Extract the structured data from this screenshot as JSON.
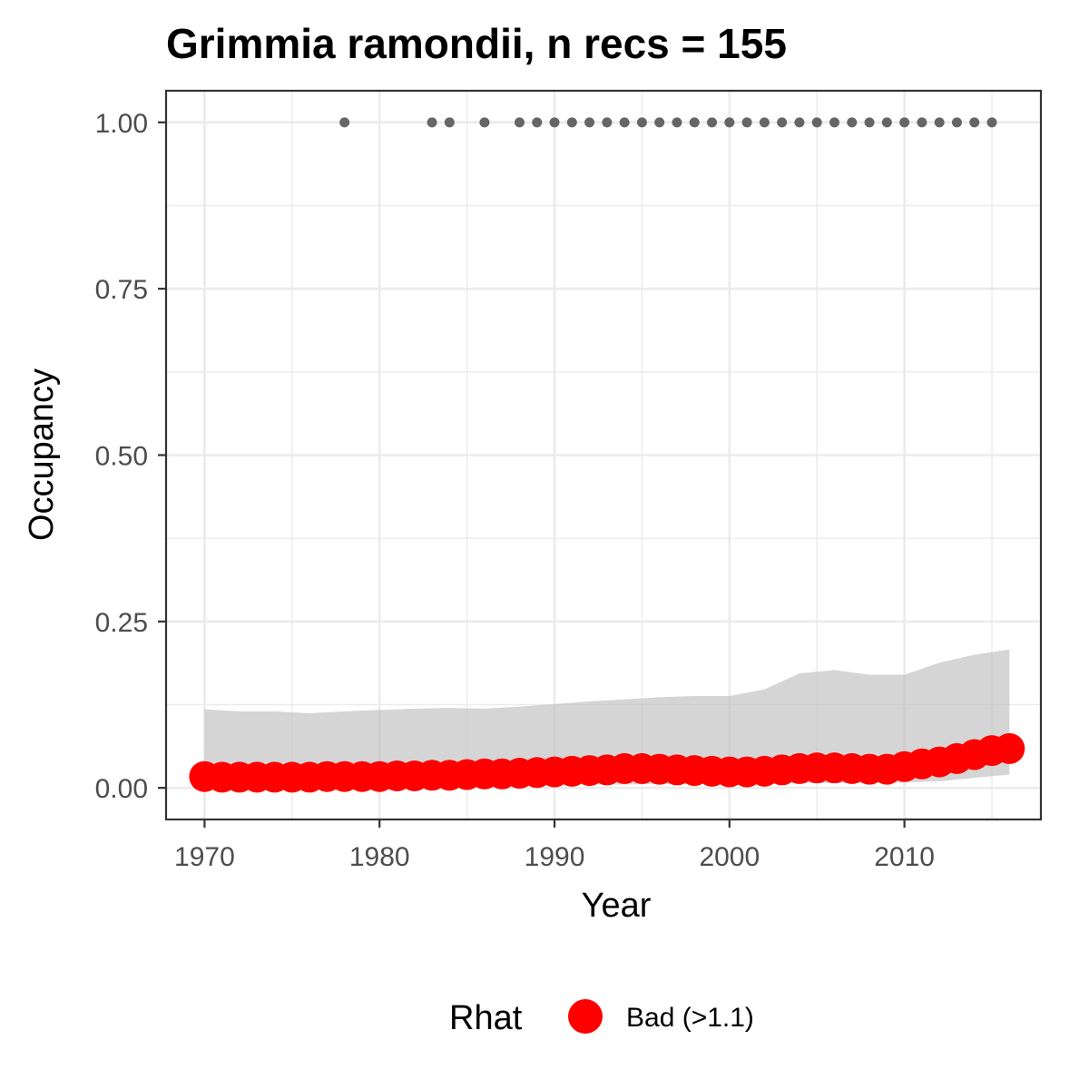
{
  "chart_data": {
    "type": "line",
    "title": "Grimmia ramondii, n recs = 155",
    "xlabel": "Year",
    "ylabel": "Occupancy",
    "xlim": [
      1967.8,
      2017.8
    ],
    "ylim": [
      -0.0475,
      1.0475
    ],
    "x_ticks": [
      1970,
      1980,
      1990,
      2000,
      2010
    ],
    "y_ticks": [
      0,
      0.25,
      0.5,
      0.75,
      1.0
    ],
    "y_tick_labels": [
      "0.00",
      "0.25",
      "0.50",
      "0.75",
      "1.00"
    ],
    "grid": true,
    "legend": {
      "title": "Rhat",
      "position": "bottom",
      "entries": [
        {
          "label": "Bad (>1.1)",
          "color": "#ff0000"
        }
      ]
    },
    "colors": {
      "estimate_points": "#ff0000",
      "credible_interval": "#bebebe",
      "observation_points": "#666666",
      "grid": "#ebebeb",
      "panel_border": "#333333"
    },
    "series": [
      {
        "name": "Bad (>1.1)",
        "kind": "points",
        "x": [
          1970,
          1971,
          1972,
          1973,
          1974,
          1975,
          1976,
          1977,
          1978,
          1979,
          1980,
          1981,
          1982,
          1983,
          1984,
          1985,
          1986,
          1987,
          1988,
          1989,
          1990,
          1991,
          1992,
          1993,
          1994,
          1995,
          1996,
          1997,
          1998,
          1999,
          2000,
          2001,
          2002,
          2003,
          2004,
          2005,
          2006,
          2007,
          2008,
          2009,
          2010,
          2011,
          2012,
          2013,
          2014,
          2015,
          2016
        ],
        "y": [
          0.017,
          0.016,
          0.016,
          0.016,
          0.016,
          0.016,
          0.016,
          0.017,
          0.017,
          0.017,
          0.017,
          0.018,
          0.018,
          0.019,
          0.019,
          0.02,
          0.021,
          0.021,
          0.022,
          0.023,
          0.024,
          0.025,
          0.026,
          0.027,
          0.029,
          0.029,
          0.028,
          0.027,
          0.026,
          0.025,
          0.024,
          0.024,
          0.025,
          0.027,
          0.029,
          0.03,
          0.03,
          0.029,
          0.028,
          0.028,
          0.032,
          0.036,
          0.039,
          0.044,
          0.05,
          0.056,
          0.059
        ]
      },
      {
        "name": "",
        "kind": "ribbon",
        "x": [
          1970,
          1972,
          1974,
          1976,
          1978,
          1980,
          1982,
          1984,
          1986,
          1988,
          1990,
          1992,
          1994,
          1996,
          1998,
          2000,
          2002,
          2004,
          2006,
          2008,
          2010,
          2012,
          2014,
          2016
        ],
        "lower": [
          0.005,
          0.005,
          0.005,
          0.005,
          0.005,
          0.005,
          0.005,
          0.005,
          0.005,
          0.005,
          0.005,
          0.005,
          0.005,
          0.006,
          0.006,
          0.006,
          0.006,
          0.007,
          0.007,
          0.007,
          0.008,
          0.01,
          0.015,
          0.02
        ],
        "upper": [
          0.118,
          0.115,
          0.115,
          0.112,
          0.115,
          0.117,
          0.119,
          0.12,
          0.119,
          0.122,
          0.126,
          0.13,
          0.133,
          0.136,
          0.138,
          0.138,
          0.148,
          0.172,
          0.177,
          0.17,
          0.17,
          0.188,
          0.2,
          0.208
        ]
      },
      {
        "name": "",
        "kind": "observations",
        "x": [
          1978,
          1983,
          1984,
          1986,
          1988,
          1989,
          1990,
          1991,
          1992,
          1993,
          1994,
          1995,
          1996,
          1997,
          1998,
          1999,
          2000,
          2001,
          2002,
          2003,
          2004,
          2005,
          2006,
          2007,
          2008,
          2009,
          2010,
          2011,
          2012,
          2013,
          2014,
          2015
        ],
        "y": [
          1,
          1,
          1,
          1,
          1,
          1,
          1,
          1,
          1,
          1,
          1,
          1,
          1,
          1,
          1,
          1,
          1,
          1,
          1,
          1,
          1,
          1,
          1,
          1,
          1,
          1,
          1,
          1,
          1,
          1,
          1,
          1
        ]
      }
    ]
  }
}
